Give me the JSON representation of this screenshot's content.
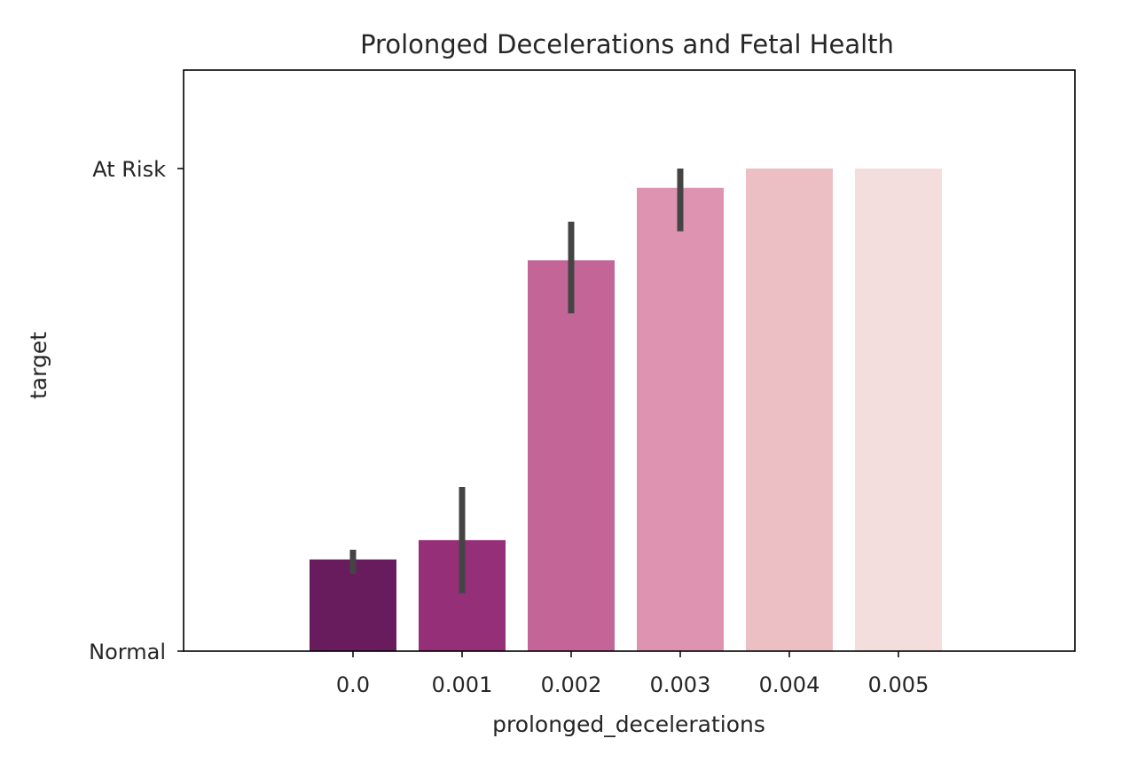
{
  "chart_data": {
    "type": "bar",
    "title": "Prolonged Decelerations and Fetal Health",
    "xlabel": "prolonged_decelerations",
    "ylabel": "target",
    "categories": [
      "0.0",
      "0.001",
      "0.002",
      "0.003",
      "0.004",
      "0.005"
    ],
    "values": [
      0.19,
      0.23,
      0.81,
      0.96,
      1.0,
      1.0
    ],
    "error_bars": [
      [
        0.16,
        0.21
      ],
      [
        0.12,
        0.34
      ],
      [
        0.7,
        0.89
      ],
      [
        0.87,
        1.0
      ],
      null,
      null
    ],
    "colors": [
      "#681c5e",
      "#952f78",
      "#c36597",
      "#de94b0",
      "#ebbfc4",
      "#f3dddd"
    ],
    "error_color": "#444444",
    "yticks": [
      {
        "value": 0,
        "label": "Normal"
      },
      {
        "value": 1,
        "label": "At Risk"
      }
    ],
    "ylim": [
      0,
      1.2
    ],
    "grid": false,
    "legend": null
  }
}
